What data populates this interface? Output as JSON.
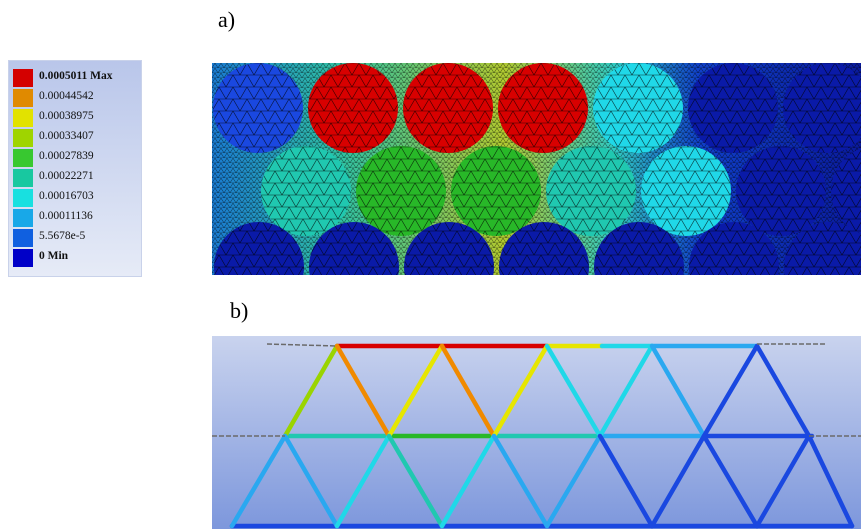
{
  "panels": {
    "a_label": "a)",
    "b_label": "b)"
  },
  "legend": {
    "entries": [
      {
        "text": "0.0005011 Max",
        "color": "#d40000",
        "bold": true
      },
      {
        "text": "0.00044542",
        "color": "#e08a00",
        "bold": false
      },
      {
        "text": "0.00038975",
        "color": "#e2e200",
        "bold": false
      },
      {
        "text": "0.00033407",
        "color": "#9fd400",
        "bold": false
      },
      {
        "text": "0.00027839",
        "color": "#38c830",
        "bold": false
      },
      {
        "text": "0.00022271",
        "color": "#18c8a0",
        "bold": false
      },
      {
        "text": "0.00016703",
        "color": "#18e0e0",
        "bold": false
      },
      {
        "text": "0.00011136",
        "color": "#18a8e8",
        "bold": false
      },
      {
        "text": "5.5678e-5",
        "color": "#1060e0",
        "bold": false
      },
      {
        "text": "0 Min",
        "color": "#0000c8",
        "bold": true
      }
    ]
  },
  "colors": {
    "red": "#d80000",
    "orange": "#f08a00",
    "yellow": "#e6e600",
    "lime": "#9ad400",
    "green": "#28b828",
    "teal": "#20c8b0",
    "cyan": "#20d8e8",
    "sky": "#2aa8f0",
    "blue": "#1a48e0",
    "navy": "#0a1aa8",
    "background_a": "#0a2a8a"
  },
  "panel_a": {
    "circle_rows": [
      [
        "blue",
        "red",
        "red",
        "red",
        "cyan",
        "navy",
        "navy"
      ],
      [
        "teal",
        "green",
        "green",
        "teal",
        "cyan",
        "navy",
        "navy"
      ],
      [
        "navy",
        "navy",
        "navy",
        "navy",
        "navy",
        "navy",
        "navy"
      ]
    ]
  },
  "panel_b": {
    "description_hidden": false
  }
}
